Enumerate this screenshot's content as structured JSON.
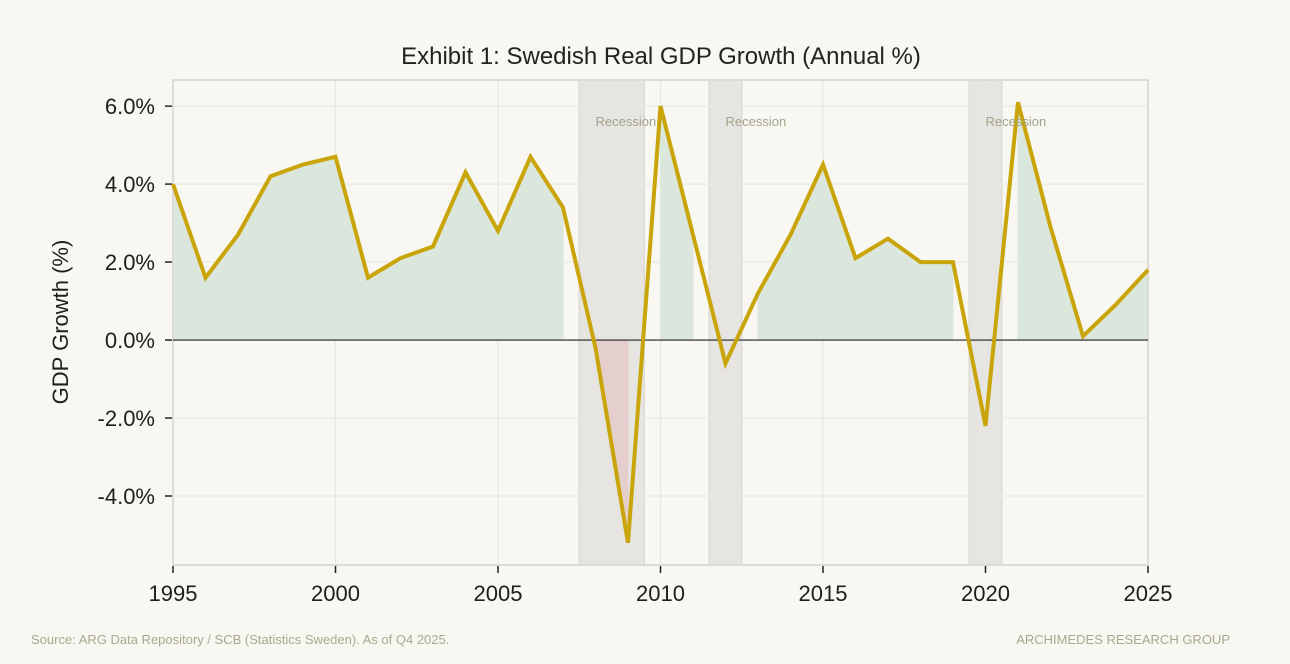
{
  "chart_data": {
    "type": "line",
    "title": "Exhibit 1: Swedish Real GDP Growth (Annual %)",
    "xlabel": "",
    "ylabel": "GDP Growth (%)",
    "xlim": [
      1995,
      2025
    ],
    "ylim": [
      -5.77,
      6.67
    ],
    "x_ticks": [
      "1995",
      "2000",
      "2005",
      "2010",
      "2015",
      "2020",
      "2025"
    ],
    "y_ticks": [
      "6.0%",
      "4.0%",
      "2.0%",
      "0.0%",
      "-2.0%",
      "-4.0%"
    ],
    "grid": true,
    "series": [
      {
        "x": [
          1995,
          1996,
          1997,
          1998,
          1999,
          2000,
          2001,
          2002,
          2003,
          2004,
          2005,
          2006,
          2007,
          2008,
          2009,
          2010,
          2011,
          2012,
          2013,
          2014,
          2015,
          2016,
          2017,
          2018,
          2019,
          2020,
          2021,
          2022,
          2023,
          2024,
          2025
        ],
        "values": [
          4.0,
          1.6,
          2.7,
          4.2,
          4.5,
          4.7,
          1.6,
          2.1,
          2.4,
          4.3,
          2.8,
          4.7,
          3.4,
          -0.2,
          -5.2,
          6.0,
          2.7,
          -0.6,
          1.2,
          2.7,
          4.5,
          2.1,
          2.6,
          2.0,
          2.0,
          -2.2,
          6.1,
          2.9,
          0.1,
          0.9,
          1.8
        ],
        "color": "#c9a50a"
      }
    ],
    "recessions": [
      {
        "start": 2007.5,
        "end": 2009.5,
        "label": "Recession"
      },
      {
        "start": 2011.5,
        "end": 2012.5,
        "label": "Recession"
      },
      {
        "start": 2019.5,
        "end": 2020.5,
        "label": "Recession"
      }
    ],
    "colors": {
      "positive_fill": "#dbe6dc",
      "negative_fill": "#e5cfcd",
      "recession_band": "#e6e5e1",
      "line": "#c9a50a"
    }
  },
  "footer": {
    "source": "Source: ARG Data Repository / SCB (Statistics Sweden). As of Q4 2025.",
    "brand": "ARCHIMEDES RESEARCH GROUP"
  }
}
